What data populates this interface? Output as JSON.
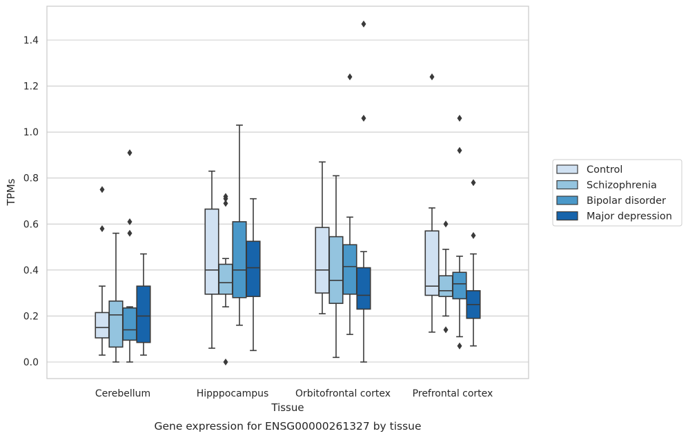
{
  "chart_data": {
    "type": "boxplot",
    "caption": "Gene expression for ENSG00000261327 by tissue",
    "xlabel": "Tissue",
    "ylabel": "TPMs",
    "ylim": [
      -0.07,
      1.55
    ],
    "yticks": [
      0.0,
      0.2,
      0.4,
      0.6,
      0.8,
      1.0,
      1.2,
      1.4
    ],
    "ytick_labels": [
      "0.0",
      "0.2",
      "0.4",
      "0.6",
      "0.8",
      "1.0",
      "1.2",
      "1.4"
    ],
    "grid": true,
    "legend_placement": "right",
    "categories": [
      "Cerebellum",
      "Hipppocampus",
      "Orbitofrontal cortex",
      "Prefrontal cortex"
    ],
    "series": [
      {
        "name": "Control",
        "color": "#d0e1f2",
        "boxes": [
          {
            "whisker_low": 0.03,
            "q1": 0.105,
            "median": 0.15,
            "q3": 0.215,
            "whisker_high": 0.33,
            "outliers": [
              0.58,
              0.75
            ]
          },
          {
            "whisker_low": 0.06,
            "q1": 0.295,
            "median": 0.4,
            "q3": 0.665,
            "whisker_high": 0.83,
            "outliers": []
          },
          {
            "whisker_low": 0.21,
            "q1": 0.3,
            "median": 0.4,
            "q3": 0.585,
            "whisker_high": 0.87,
            "outliers": []
          },
          {
            "whisker_low": 0.13,
            "q1": 0.29,
            "median": 0.33,
            "q3": 0.57,
            "whisker_high": 0.67,
            "outliers": [
              1.24
            ]
          }
        ]
      },
      {
        "name": "Schizophrenia",
        "color": "#94c4df",
        "boxes": [
          {
            "whisker_low": 0.0,
            "q1": 0.065,
            "median": 0.205,
            "q3": 0.265,
            "whisker_high": 0.56,
            "outliers": []
          },
          {
            "whisker_low": 0.24,
            "q1": 0.295,
            "median": 0.345,
            "q3": 0.425,
            "whisker_high": 0.45,
            "outliers": [
              0.0,
              0.69,
              0.71,
              0.72
            ]
          },
          {
            "whisker_low": 0.02,
            "q1": 0.255,
            "median": 0.355,
            "q3": 0.545,
            "whisker_high": 0.81,
            "outliers": []
          },
          {
            "whisker_low": 0.2,
            "q1": 0.285,
            "median": 0.31,
            "q3": 0.375,
            "whisker_high": 0.49,
            "outliers": [
              0.14,
              0.6
            ]
          }
        ]
      },
      {
        "name": "Bipolar disorder",
        "color": "#4a98c9",
        "boxes": [
          {
            "whisker_low": 0.0,
            "q1": 0.095,
            "median": 0.14,
            "q3": 0.235,
            "whisker_high": 0.24,
            "outliers": [
              0.56,
              0.61,
              0.91
            ]
          },
          {
            "whisker_low": 0.16,
            "q1": 0.28,
            "median": 0.4,
            "q3": 0.61,
            "whisker_high": 1.03,
            "outliers": []
          },
          {
            "whisker_low": 0.12,
            "q1": 0.295,
            "median": 0.415,
            "q3": 0.51,
            "whisker_high": 0.63,
            "outliers": [
              1.24
            ]
          },
          {
            "whisker_low": 0.11,
            "q1": 0.275,
            "median": 0.34,
            "q3": 0.39,
            "whisker_high": 0.46,
            "outliers": [
              0.07,
              0.92,
              1.06
            ]
          }
        ]
      },
      {
        "name": "Major depression",
        "color": "#1764ab",
        "boxes": [
          {
            "whisker_low": 0.03,
            "q1": 0.085,
            "median": 0.2,
            "q3": 0.33,
            "whisker_high": 0.47,
            "outliers": []
          },
          {
            "whisker_low": 0.05,
            "q1": 0.285,
            "median": 0.41,
            "q3": 0.525,
            "whisker_high": 0.71,
            "outliers": []
          },
          {
            "whisker_low": 0.0,
            "q1": 0.23,
            "median": 0.29,
            "q3": 0.41,
            "whisker_high": 0.48,
            "outliers": [
              1.06,
              1.47
            ]
          },
          {
            "whisker_low": 0.07,
            "q1": 0.19,
            "median": 0.25,
            "q3": 0.31,
            "whisker_high": 0.47,
            "outliers": [
              0.55,
              0.78
            ]
          }
        ]
      }
    ]
  }
}
